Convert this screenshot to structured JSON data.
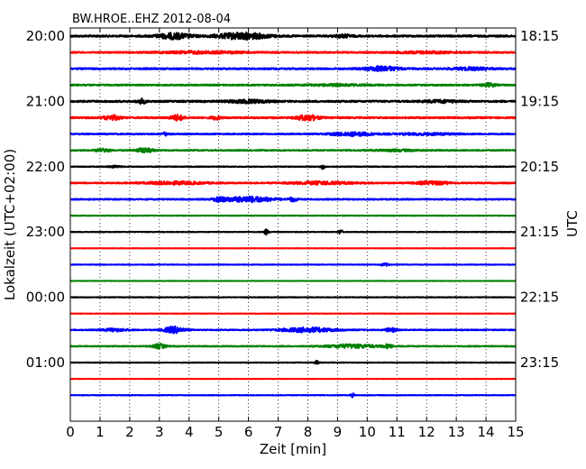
{
  "chart_data": {
    "type": "line",
    "title": "BW.HROE..EHZ 2012-08-04",
    "xlabel": "Zeit  [min]",
    "ylabel_left": "Lokalzeit (UTC+02:00)",
    "ylabel_right": "UTC",
    "xlim": [
      0,
      15
    ],
    "x_ticks": [
      "0",
      "1",
      "2",
      "3",
      "4",
      "5",
      "6",
      "7",
      "8",
      "9",
      "10",
      "11",
      "12",
      "13",
      "14",
      "15"
    ],
    "grid": "vertical-dotted",
    "row_interval_min": 15,
    "left_row_labels": [
      {
        "row": 0,
        "label": "20:00"
      },
      {
        "row": 4,
        "label": "21:00"
      },
      {
        "row": 8,
        "label": "22:00"
      },
      {
        "row": 12,
        "label": "23:00"
      },
      {
        "row": 16,
        "label": "00:00"
      },
      {
        "row": 20,
        "label": "01:00"
      }
    ],
    "right_row_labels": [
      {
        "row": 0,
        "label": "18:15"
      },
      {
        "row": 4,
        "label": "19:15"
      },
      {
        "row": 8,
        "label": "20:15"
      },
      {
        "row": 12,
        "label": "21:15"
      },
      {
        "row": 16,
        "label": "22:15"
      },
      {
        "row": 20,
        "label": "23:15"
      }
    ],
    "color_cycle": [
      "#000000",
      "#ff0000",
      "#0000ff",
      "#008000"
    ],
    "traces": [
      {
        "row": 0,
        "noise": 0.9,
        "bursts": [
          [
            3.5,
            0.8,
            3.0
          ],
          [
            5.8,
            1.2,
            3.5
          ],
          [
            9.2,
            0.4,
            1.5
          ]
        ]
      },
      {
        "row": 1,
        "noise": 0.7,
        "bursts": [
          [
            4.5,
            2.0,
            1.2
          ],
          [
            12.0,
            1.5,
            1.0
          ]
        ]
      },
      {
        "row": 2,
        "noise": 0.8,
        "bursts": [
          [
            10.5,
            0.8,
            2.5
          ],
          [
            13.5,
            1.0,
            1.2
          ]
        ]
      },
      {
        "row": 3,
        "noise": 0.7,
        "bursts": [
          [
            14.1,
            0.3,
            2.0
          ],
          [
            9.0,
            1.5,
            0.8
          ]
        ]
      },
      {
        "row": 4,
        "noise": 0.9,
        "bursts": [
          [
            2.4,
            0.2,
            2.5
          ],
          [
            6.0,
            1.0,
            1.5
          ],
          [
            12.5,
            0.8,
            1.2
          ]
        ]
      },
      {
        "row": 5,
        "noise": 0.8,
        "bursts": [
          [
            1.4,
            0.4,
            2.5
          ],
          [
            3.6,
            0.3,
            3.0
          ],
          [
            4.9,
            0.2,
            2.0
          ],
          [
            8.0,
            0.5,
            3.0
          ]
        ]
      },
      {
        "row": 6,
        "noise": 0.6,
        "bursts": [
          [
            3.2,
            0.2,
            1.5
          ],
          [
            9.5,
            1.0,
            2.0
          ],
          [
            12.0,
            1.5,
            1.0
          ]
        ]
      },
      {
        "row": 7,
        "noise": 0.6,
        "bursts": [
          [
            1.1,
            0.3,
            2.0
          ],
          [
            2.5,
            0.4,
            2.5
          ],
          [
            11.0,
            1.0,
            0.8
          ]
        ]
      },
      {
        "row": 8,
        "noise": 0.4,
        "bursts": [
          [
            8.5,
            0.1,
            2.5
          ],
          [
            1.5,
            0.3,
            1.0
          ]
        ]
      },
      {
        "row": 9,
        "noise": 0.6,
        "bursts": [
          [
            3.5,
            1.5,
            1.5
          ],
          [
            8.5,
            1.5,
            1.5
          ],
          [
            12.2,
            0.8,
            1.8
          ]
        ]
      },
      {
        "row": 10,
        "noise": 0.6,
        "bursts": [
          [
            5.0,
            0.3,
            2.0
          ],
          [
            6.0,
            1.2,
            3.0
          ],
          [
            7.5,
            0.2,
            2.0
          ]
        ]
      },
      {
        "row": 11,
        "noise": 0.3,
        "bursts": []
      },
      {
        "row": 12,
        "noise": 0.3,
        "bursts": [
          [
            6.6,
            0.1,
            3.0
          ],
          [
            9.1,
            0.1,
            2.5
          ]
        ]
      },
      {
        "row": 13,
        "noise": 0.2,
        "bursts": []
      },
      {
        "row": 14,
        "noise": 0.3,
        "bursts": [
          [
            10.6,
            0.2,
            1.5
          ]
        ]
      },
      {
        "row": 15,
        "noise": 0.2,
        "bursts": []
      },
      {
        "row": 16,
        "noise": 0.3,
        "bursts": []
      },
      {
        "row": 17,
        "noise": 0.2,
        "bursts": []
      },
      {
        "row": 18,
        "noise": 0.5,
        "bursts": [
          [
            1.5,
            0.6,
            1.5
          ],
          [
            3.5,
            0.5,
            3.5
          ],
          [
            8.0,
            1.3,
            2.5
          ],
          [
            10.8,
            0.3,
            2.0
          ]
        ]
      },
      {
        "row": 19,
        "noise": 0.5,
        "bursts": [
          [
            3.0,
            0.3,
            2.5
          ],
          [
            9.5,
            1.2,
            2.0
          ],
          [
            10.7,
            0.2,
            2.0
          ]
        ]
      },
      {
        "row": 20,
        "noise": 0.3,
        "bursts": [
          [
            8.3,
            0.1,
            2.0
          ]
        ]
      },
      {
        "row": 21,
        "noise": 0.2,
        "bursts": []
      },
      {
        "row": 22,
        "noise": 0.3,
        "bursts": [
          [
            9.5,
            0.1,
            2.0
          ]
        ]
      }
    ]
  }
}
